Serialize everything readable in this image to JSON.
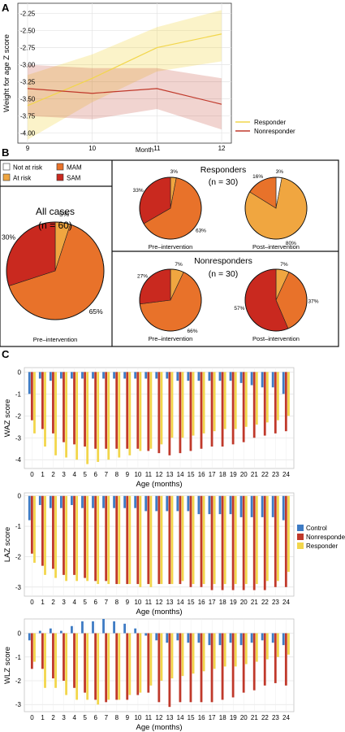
{
  "panels": {
    "a": "A",
    "b": "B",
    "c": "C"
  },
  "colors": {
    "responder": "#f2d64b",
    "nonresponder": "#c0392b",
    "control": "#3e7bc4",
    "not_at_risk": "#ffffff",
    "at_risk": "#f0a640",
    "mam": "#e8722a",
    "sam": "#c9291f"
  },
  "chart_data": [
    {
      "id": "A",
      "type": "line",
      "xlabel": "Month",
      "ylabel": "Weight for age Z score",
      "x": [
        9,
        10,
        11,
        12
      ],
      "xticks": [
        "9",
        "10",
        "11",
        "12"
      ],
      "yticks": [
        "-2.25",
        "-2.50",
        "-2.75",
        "-3.00",
        "-3.25",
        "-3.50",
        "-3.75",
        "-4.00"
      ],
      "ylim": [
        -4.15,
        -2.1
      ],
      "xlim": [
        8.85,
        12.15
      ],
      "grid": true,
      "legend": "right",
      "series": [
        {
          "name": "Responder",
          "values": [
            -3.6,
            -3.2,
            -2.75,
            -2.55
          ],
          "lower": [
            -4.1,
            -3.55,
            -3.1,
            -2.95
          ],
          "upper": [
            -3.15,
            -2.85,
            -2.45,
            -2.2
          ]
        },
        {
          "name": "Nonresponder",
          "values": [
            -3.35,
            -3.42,
            -3.35,
            -3.58
          ],
          "lower": [
            -3.75,
            -3.8,
            -3.65,
            -3.95
          ],
          "upper": [
            -3.0,
            -3.05,
            -3.05,
            -3.2
          ]
        }
      ]
    },
    {
      "id": "B",
      "type": "pie",
      "legend": [
        "Not at risk",
        "At risk",
        "MAM",
        "SAM"
      ],
      "pies": [
        {
          "key": "all",
          "title": "All cases",
          "n": "(n = 60)",
          "caption": "Pre–intervention",
          "slices": [
            0,
            5,
            65,
            30
          ],
          "labels": [
            "",
            "5%",
            "65%",
            "30%"
          ]
        },
        {
          "key": "r_pre",
          "title": "Responders",
          "n": "(n = 30)",
          "caption": "Pre–intervention",
          "slices": [
            0,
            3,
            63,
            33
          ],
          "labels": [
            "",
            "3%",
            "63%",
            "33%"
          ]
        },
        {
          "key": "r_post",
          "caption": "Post–intervention",
          "slices": [
            3,
            80,
            16,
            0
          ],
          "labels": [
            "3%",
            "80%",
            "16%",
            ""
          ]
        },
        {
          "key": "n_pre",
          "title": "Nonresponders",
          "n": "(n = 30)",
          "caption": "Pre–intervention",
          "slices": [
            0,
            7,
            66,
            27
          ],
          "labels": [
            "",
            "7%",
            "66%",
            "27%"
          ]
        },
        {
          "key": "n_post",
          "caption": "Post–intervention",
          "slices": [
            0,
            7,
            37,
            57
          ],
          "labels": [
            "",
            "7%",
            "37%",
            "57%"
          ]
        }
      ]
    },
    {
      "id": "C",
      "type": "bar",
      "xlabel": "Age (months)",
      "categories": [
        "0",
        "1",
        "2",
        "3",
        "4",
        "5",
        "6",
        "7",
        "8",
        "9",
        "10",
        "11",
        "12",
        "13",
        "14",
        "15",
        "16",
        "17",
        "18",
        "19",
        "20",
        "21",
        "22",
        "23",
        "24"
      ],
      "legend": [
        "Control",
        "Nonresponder",
        "Responder"
      ],
      "subplots": [
        {
          "ylabel": "WAZ score",
          "ylim": [
            -4.4,
            0.2
          ],
          "yticks": [
            0,
            -1,
            -2,
            -3,
            -4
          ],
          "series": [
            {
              "name": "Control",
              "values": [
                -1.0,
                -0.3,
                -0.4,
                -0.3,
                -0.3,
                -0.3,
                -0.3,
                -0.3,
                -0.3,
                -0.3,
                -0.3,
                -0.3,
                -0.3,
                -0.3,
                -0.4,
                -0.4,
                -0.4,
                -0.4,
                -0.4,
                -0.4,
                -0.5,
                -0.6,
                -0.7,
                -0.7,
                -1.0
              ]
            },
            {
              "name": "Nonresponder",
              "values": [
                -2.2,
                -2.6,
                -2.8,
                -3.2,
                -3.3,
                -3.4,
                -3.5,
                -3.5,
                -3.5,
                -3.5,
                -3.5,
                -3.6,
                -3.7,
                -3.8,
                -3.7,
                -3.6,
                -3.5,
                -3.4,
                -3.4,
                -3.3,
                -3.2,
                -3.0,
                -2.9,
                -2.8,
                -2.7
              ]
            },
            {
              "name": "Responder",
              "values": [
                -2.8,
                -3.4,
                -3.8,
                -3.9,
                -4.0,
                -4.2,
                -4.1,
                -4.0,
                -3.9,
                -3.8,
                -3.6,
                -3.5,
                -3.3,
                -3.0,
                -3.0,
                -2.9,
                -2.8,
                -2.7,
                -2.6,
                -2.6,
                -2.5,
                -2.4,
                -2.3,
                -2.2,
                -2.0
              ]
            }
          ]
        },
        {
          "ylabel": "LAZ score",
          "ylim": [
            -3.3,
            0.1
          ],
          "yticks": [
            0,
            -1,
            -2,
            -3
          ],
          "series": [
            {
              "name": "Control",
              "values": [
                -0.8,
                -0.3,
                -0.4,
                -0.4,
                -0.3,
                -0.4,
                -0.4,
                -0.4,
                -0.4,
                -0.4,
                -0.4,
                -0.5,
                -0.5,
                -0.5,
                -0.5,
                -0.5,
                -0.6,
                -0.6,
                -0.6,
                -0.6,
                -0.7,
                -0.7,
                -0.7,
                -0.7,
                -0.8
              ]
            },
            {
              "name": "Nonresponder",
              "values": [
                -1.9,
                -2.3,
                -2.4,
                -2.6,
                -2.6,
                -2.7,
                -2.8,
                -2.8,
                -2.9,
                -2.9,
                -2.9,
                -2.9,
                -2.9,
                -2.9,
                -2.9,
                -3.0,
                -3.0,
                -3.1,
                -3.1,
                -3.1,
                -3.1,
                -3.1,
                -3.1,
                -3.0,
                -3.0
              ]
            },
            {
              "name": "Responder",
              "values": [
                -2.2,
                -2.6,
                -2.7,
                -2.8,
                -2.8,
                -2.8,
                -2.9,
                -2.9,
                -2.9,
                -2.9,
                -3.0,
                -3.0,
                -2.9,
                -2.9,
                -2.8,
                -2.9,
                -2.9,
                -2.9,
                -2.9,
                -2.9,
                -2.9,
                -2.9,
                -2.8,
                -2.8,
                -2.5
              ]
            }
          ]
        },
        {
          "ylabel": "WLZ score",
          "ylim": [
            -3.3,
            0.6
          ],
          "yticks": [
            0,
            -1,
            -2,
            -3
          ],
          "series": [
            {
              "name": "Control",
              "values": [
                -0.3,
                0.1,
                0.2,
                0.1,
                0.3,
                0.5,
                0.5,
                0.6,
                0.5,
                0.4,
                0.2,
                -0.1,
                -0.3,
                -0.4,
                -0.3,
                -0.4,
                -0.4,
                -0.5,
                -0.5,
                -0.4,
                -0.5,
                -0.4,
                -0.3,
                -0.4,
                -0.5
              ]
            },
            {
              "name": "Nonresponder",
              "values": [
                -1.5,
                -1.5,
                -1.9,
                -2.0,
                -2.3,
                -2.5,
                -2.8,
                -2.9,
                -2.8,
                -2.8,
                -2.6,
                -2.5,
                -2.9,
                -3.1,
                -2.9,
                -2.9,
                -2.9,
                -2.9,
                -2.8,
                -2.7,
                -2.5,
                -2.4,
                -2.2,
                -2.1,
                -2.2
              ]
            },
            {
              "name": "Responder",
              "values": [
                -1.2,
                -2.3,
                -2.3,
                -2.6,
                -2.8,
                -2.8,
                -3.0,
                -2.8,
                -2.8,
                -2.6,
                -2.5,
                -2.2,
                -2.0,
                -1.9,
                -1.8,
                -1.7,
                -1.6,
                -1.5,
                -1.4,
                -1.4,
                -1.3,
                -1.2,
                -1.1,
                -1.0,
                -0.9
              ]
            }
          ]
        }
      ]
    }
  ]
}
